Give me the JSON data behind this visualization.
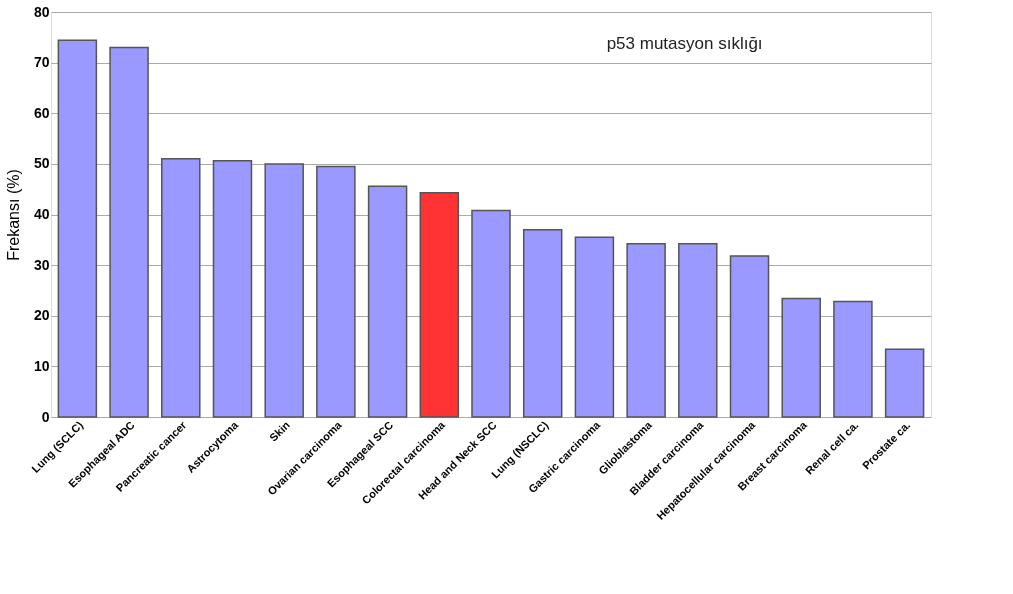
{
  "chart_data": {
    "type": "bar",
    "title": "p53 mutasyon sıklığı",
    "ylabel": "Frekansı (%)",
    "categories": [
      "Lung (SCLC)",
      "Esophageal ADC",
      "Pancreatic cancer",
      "Astrocytoma",
      "Skin",
      "Ovarian carcinoma",
      "Esophageal SCC",
      "Colorectal carcinoma",
      "Head and Neck SCC",
      "Lung (NSCLC)",
      "Gastric carcinoma",
      "Glioblastoma",
      "Bladder carcinoma",
      "Hepatocellular carcinoma",
      "Breast carcinoma",
      "Renal cell ca.",
      "Prostate ca."
    ],
    "values": [
      74.4,
      73.0,
      51.0,
      50.6,
      50.0,
      49.5,
      45.6,
      44.3,
      40.8,
      37.0,
      35.5,
      34.2,
      34.2,
      31.8,
      23.4,
      22.8,
      13.4
    ],
    "colors": [
      "#9999ff",
      "#9999ff",
      "#9999ff",
      "#9999ff",
      "#9999ff",
      "#9999ff",
      "#9999ff",
      "#ff3333",
      "#9999ff",
      "#9999ff",
      "#9999ff",
      "#9999ff",
      "#9999ff",
      "#9999ff",
      "#9999ff",
      "#9999ff",
      "#9999ff"
    ],
    "ylim": [
      0,
      80
    ],
    "yticks": [
      0,
      10,
      20,
      30,
      40,
      50,
      60,
      70,
      80
    ],
    "grid": "y"
  }
}
